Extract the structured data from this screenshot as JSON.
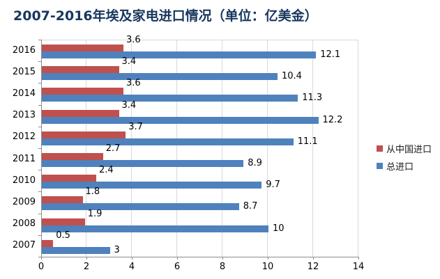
{
  "title": "2007-2016年埃及家电进口情况（单位：亿美金）",
  "colors": {
    "title": "#17375E",
    "series_china": "#C0504D",
    "series_total": "#4F81BD",
    "gridline": "#D9D9D9",
    "axis": "#8C8C8C",
    "label": "#000000"
  },
  "legend": {
    "items": [
      {
        "label": "从中国进口",
        "color": "#C0504D"
      },
      {
        "label": "总进口",
        "color": "#4F81BD"
      }
    ]
  },
  "chart_data": {
    "type": "bar",
    "orientation": "horizontal",
    "title": "2007-2016年埃及家电进口情况（单位：亿美金）",
    "categories": [
      "2016",
      "2015",
      "2014",
      "2013",
      "2012",
      "2011",
      "2010",
      "2009",
      "2008",
      "2007"
    ],
    "series": [
      {
        "name": "从中国进口",
        "key": "china",
        "color": "#C0504D",
        "values": [
          3.6,
          3.4,
          3.6,
          3.4,
          3.7,
          2.7,
          2.4,
          1.8,
          1.9,
          0.5
        ]
      },
      {
        "name": "总进口",
        "key": "total",
        "color": "#4F81BD",
        "values": [
          12.1,
          10.4,
          11.3,
          12.2,
          11.1,
          8.9,
          9.7,
          8.7,
          10,
          3
        ]
      }
    ],
    "xlabel": "",
    "ylabel": "",
    "xlim": [
      0,
      14
    ],
    "x_ticks": [
      0,
      2,
      4,
      6,
      8,
      10,
      12,
      14
    ],
    "grid": true,
    "data_labels": true,
    "legend_position": "right"
  }
}
